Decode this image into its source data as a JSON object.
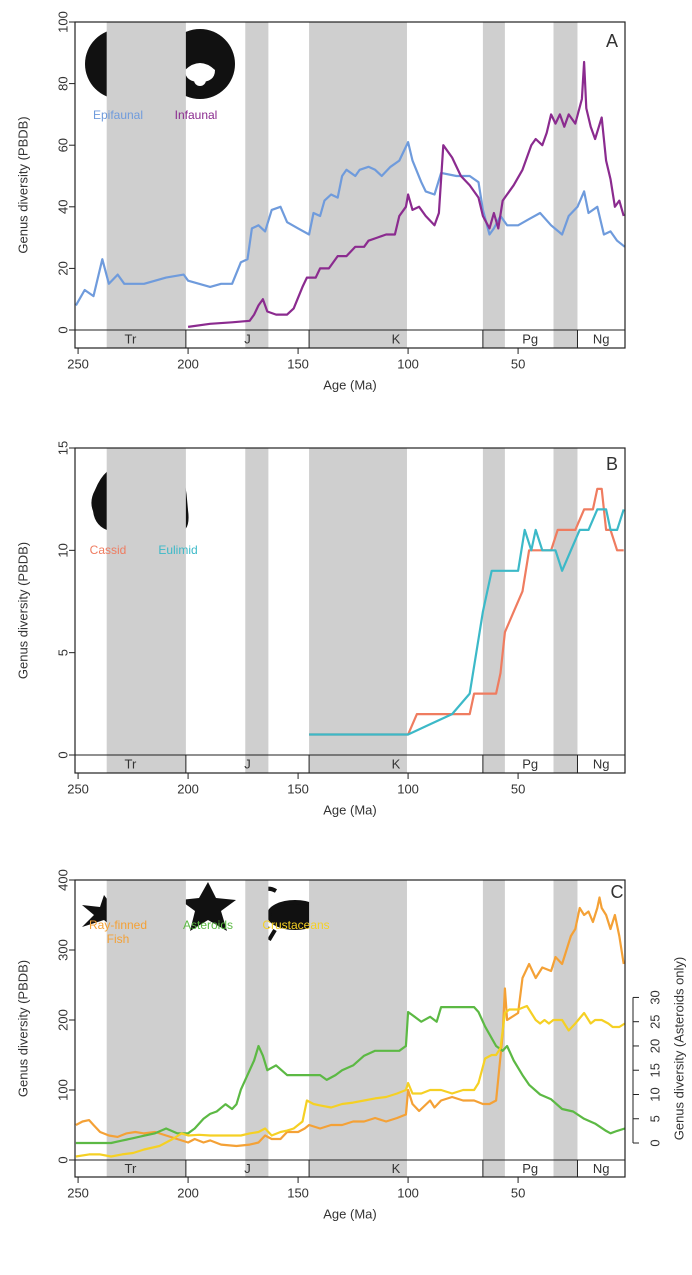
{
  "chart_data": [
    {
      "type": "line",
      "panel_label": "A",
      "ylabel": "Genus diversity (PBDB)",
      "xlabel": "Age (Ma)",
      "xlim": [
        251.4,
        1.4
      ],
      "xticks": [
        250,
        200,
        150,
        100,
        50
      ],
      "ylim": [
        0,
        100
      ],
      "yticks": [
        0,
        20,
        40,
        60,
        80,
        100
      ],
      "bands": [
        [
          237,
          201
        ],
        [
          174,
          163.5
        ],
        [
          145,
          100.5
        ],
        [
          66,
          56
        ],
        [
          33.9,
          23
        ]
      ],
      "periods": [
        {
          "label": "Tr",
          "start": 251.4,
          "end": 201
        },
        {
          "label": "J",
          "start": 201,
          "end": 145
        },
        {
          "label": "K",
          "start": 145,
          "end": 66
        },
        {
          "label": "Pg",
          "start": 66,
          "end": 23
        },
        {
          "label": "Ng",
          "start": 23,
          "end": 1.4
        }
      ],
      "series": [
        {
          "name": "Epifaunal",
          "color": "#6f9bdc",
          "x": [
            251,
            247,
            243,
            239,
            236,
            232,
            229,
            220,
            210,
            202,
            200,
            195,
            190,
            185,
            180,
            176,
            173,
            171,
            168,
            165,
            162,
            158,
            155,
            150,
            145,
            143,
            140,
            138,
            135,
            132,
            130,
            128,
            124,
            122,
            118,
            115,
            112,
            108,
            104,
            100,
            98,
            94,
            92,
            88,
            85,
            78,
            72,
            68,
            66,
            63,
            61,
            58,
            55,
            50,
            45,
            40,
            35,
            30,
            27,
            23,
            20,
            18,
            14,
            11,
            8,
            5,
            1.5
          ],
          "values": [
            8,
            13,
            11,
            23,
            15,
            18,
            15,
            15,
            17,
            18,
            16,
            15,
            14,
            15,
            15,
            22,
            23,
            33,
            34,
            32,
            39,
            40,
            35,
            33,
            31,
            38,
            37,
            42,
            44,
            43,
            50,
            52,
            50,
            52,
            53,
            52,
            50,
            53,
            55,
            61,
            55,
            48,
            45,
            44,
            51,
            50,
            50,
            48,
            39,
            31,
            33,
            37,
            34,
            34,
            36,
            38,
            34,
            31,
            37,
            40,
            45,
            38,
            40,
            31,
            32,
            29,
            27
          ]
        },
        {
          "name": "Infaunal",
          "color": "#8b2b8f",
          "x": [
            200,
            190,
            180,
            172,
            170,
            168,
            166,
            164,
            160,
            155,
            152,
            148,
            146,
            142,
            140,
            136,
            132,
            128,
            124,
            120,
            118,
            114,
            110,
            106,
            104,
            101,
            100,
            98,
            95,
            92,
            88,
            86,
            84,
            80,
            76,
            72,
            68,
            66,
            63,
            61,
            59,
            57,
            52,
            48,
            44,
            42,
            39,
            37,
            35,
            33,
            31,
            29,
            27,
            24,
            21,
            20,
            19,
            17,
            15,
            12,
            10,
            8,
            6,
            4,
            2
          ],
          "values": [
            1,
            2,
            2.5,
            3,
            5,
            8,
            10,
            6,
            5,
            5,
            7,
            14,
            17,
            17,
            20,
            20,
            24,
            24,
            27,
            27,
            29,
            30,
            31,
            31,
            37,
            40,
            44,
            39,
            40,
            37,
            34,
            38,
            60,
            56,
            50,
            47,
            43,
            37,
            33,
            38,
            33,
            42,
            47,
            52,
            60,
            62,
            60,
            64,
            70,
            67,
            70,
            66,
            70,
            67,
            75,
            87,
            72,
            66,
            62,
            69,
            55,
            49,
            40,
            42,
            37
          ]
        }
      ]
    },
    {
      "type": "line",
      "panel_label": "B",
      "ylabel": "Genus diversity (PBDB)",
      "xlabel": "Age (Ma)",
      "xlim": [
        251.4,
        1.4
      ],
      "xticks": [
        250,
        200,
        150,
        100,
        50
      ],
      "ylim": [
        0,
        15
      ],
      "yticks": [
        0,
        5,
        10,
        15
      ],
      "bands": [
        [
          237,
          201
        ],
        [
          174,
          163.5
        ],
        [
          145,
          100.5
        ],
        [
          66,
          56
        ],
        [
          33.9,
          23
        ]
      ],
      "periods": [
        {
          "label": "Tr",
          "start": 251.4,
          "end": 201
        },
        {
          "label": "J",
          "start": 201,
          "end": 145
        },
        {
          "label": "K",
          "start": 145,
          "end": 66
        },
        {
          "label": "Pg",
          "start": 66,
          "end": 23
        },
        {
          "label": "Ng",
          "start": 23,
          "end": 1.4
        }
      ],
      "series": [
        {
          "name": "Cassid",
          "color": "#ef7c60",
          "x": [
            145,
            100,
            96,
            90,
            80,
            72,
            70,
            66,
            60,
            58,
            56,
            52,
            48,
            45,
            42,
            38,
            35,
            32,
            28,
            24,
            20,
            16,
            14,
            12,
            10,
            8,
            5,
            2
          ],
          "values": [
            1,
            1,
            2,
            2,
            2,
            2,
            3,
            3,
            3,
            4,
            6,
            7,
            8,
            10,
            10,
            10,
            10,
            11,
            11,
            11,
            12,
            12,
            13,
            13,
            11,
            11,
            10,
            10
          ]
        },
        {
          "name": "Eulimid",
          "color": "#3cb9c8",
          "x": [
            145,
            100,
            90,
            80,
            72,
            69,
            66,
            62,
            58,
            54,
            50,
            47,
            44,
            42,
            39,
            36,
            33,
            30,
            26,
            22,
            18,
            14,
            10,
            8,
            5,
            2
          ],
          "values": [
            1,
            1,
            1.5,
            2,
            3,
            5,
            7,
            9,
            9,
            9,
            9,
            11,
            10,
            11,
            10,
            10,
            10,
            9,
            10,
            11,
            11,
            12,
            12,
            11,
            11,
            12
          ]
        }
      ]
    },
    {
      "type": "line",
      "panel_label": "C",
      "ylabel": "Genus diversity (PBDB)",
      "y2label": "Genus diversity (Asteroids only)",
      "xlabel": "Age (Ma)",
      "xlim": [
        251.4,
        1.4
      ],
      "xticks": [
        250,
        200,
        150,
        100,
        50
      ],
      "ylim": [
        0,
        400
      ],
      "yticks": [
        0,
        100,
        200,
        300,
        400
      ],
      "y2lim": [
        -3.5,
        54.2
      ],
      "y2ticks": [
        0,
        5,
        10,
        15,
        20,
        25,
        30
      ],
      "bands": [
        [
          237,
          201
        ],
        [
          174,
          163.5
        ],
        [
          145,
          100.5
        ],
        [
          66,
          56
        ],
        [
          33.9,
          23
        ]
      ],
      "periods": [
        {
          "label": "Tr",
          "start": 251.4,
          "end": 201
        },
        {
          "label": "J",
          "start": 201,
          "end": 145
        },
        {
          "label": "K",
          "start": 145,
          "end": 66
        },
        {
          "label": "Pg",
          "start": 66,
          "end": 23
        },
        {
          "label": "Ng",
          "start": 23,
          "end": 1.4
        }
      ],
      "series": [
        {
          "name": "Ray-finned Fish",
          "color": "#f4a136",
          "x": [
            251,
            248,
            245,
            243,
            240,
            236,
            232,
            228,
            224,
            220,
            215,
            210,
            205,
            200,
            197,
            193,
            190,
            185,
            178,
            172,
            168,
            165,
            162,
            158,
            155,
            150,
            147,
            145,
            140,
            135,
            130,
            125,
            120,
            115,
            110,
            105,
            101,
            100,
            98,
            95,
            90,
            88,
            85,
            80,
            75,
            70,
            66,
            63,
            60,
            57,
            56,
            55,
            50,
            48,
            45,
            42,
            39,
            35,
            33,
            30,
            28,
            26,
            24,
            22,
            20,
            18,
            16,
            14,
            13,
            12,
            10,
            8,
            6,
            4,
            2
          ],
          "values": [
            50,
            55,
            57,
            50,
            40,
            35,
            33,
            38,
            40,
            38,
            40,
            35,
            30,
            25,
            30,
            25,
            28,
            22,
            20,
            22,
            25,
            35,
            30,
            30,
            40,
            40,
            45,
            50,
            45,
            50,
            50,
            55,
            55,
            60,
            55,
            60,
            65,
            100,
            80,
            70,
            85,
            75,
            85,
            90,
            85,
            85,
            80,
            80,
            85,
            180,
            245,
            200,
            210,
            260,
            280,
            260,
            275,
            270,
            290,
            280,
            300,
            320,
            330,
            360,
            350,
            355,
            340,
            360,
            375,
            360,
            350,
            330,
            350,
            320,
            280
          ]
        },
        {
          "name": "Asteroids",
          "color": "#5cb944",
          "axis": "y2",
          "x": [
            251,
            245,
            240,
            235,
            230,
            225,
            220,
            215,
            210,
            205,
            200,
            197,
            193,
            190,
            187,
            183,
            180,
            178,
            176,
            172,
            170,
            168,
            166,
            164,
            160,
            155,
            150,
            145,
            140,
            137,
            133,
            130,
            125,
            120,
            115,
            110,
            104,
            101,
            100,
            97,
            94,
            90,
            87,
            85,
            80,
            75,
            70,
            68,
            65,
            60,
            57,
            55,
            52,
            48,
            45,
            40,
            35,
            30,
            25,
            20,
            15,
            10,
            8,
            5,
            1.5
          ],
          "values": [
            0,
            0,
            0,
            0,
            0.5,
            1,
            1.5,
            2,
            3,
            2,
            2,
            3,
            5,
            6,
            6.5,
            8,
            7,
            8,
            11,
            15,
            17,
            20,
            18,
            15,
            16,
            14,
            14,
            14,
            14,
            13,
            14,
            15,
            16,
            18,
            19,
            19,
            19,
            20,
            27,
            26,
            25,
            26,
            25,
            28,
            28,
            28,
            28,
            27,
            24,
            20,
            19,
            20,
            17,
            14,
            12,
            10,
            9,
            7,
            6.5,
            5,
            4,
            2.5,
            2,
            2.5,
            3
          ]
        },
        {
          "name": "Crustaceans",
          "color": "#f5d024",
          "x": [
            251,
            245,
            240,
            235,
            230,
            225,
            220,
            213,
            207,
            203,
            200,
            195,
            190,
            185,
            180,
            176,
            172,
            168,
            165,
            162,
            158,
            155,
            152,
            148,
            146,
            143,
            140,
            135,
            130,
            125,
            120,
            115,
            110,
            105,
            101,
            100,
            98,
            94,
            90,
            85,
            80,
            75,
            70,
            68,
            65,
            62,
            60,
            58,
            56,
            54,
            50,
            46,
            44,
            42,
            40,
            38,
            36,
            34,
            30,
            27,
            24,
            20,
            17,
            15,
            12,
            9,
            7,
            4,
            1.5
          ],
          "values": [
            5,
            8,
            8,
            5,
            8,
            10,
            15,
            20,
            30,
            38,
            35,
            36,
            35,
            35,
            35,
            35,
            38,
            40,
            45,
            35,
            40,
            42,
            45,
            55,
            85,
            80,
            78,
            75,
            80,
            82,
            85,
            88,
            90,
            95,
            100,
            110,
            95,
            95,
            100,
            100,
            95,
            100,
            100,
            110,
            145,
            150,
            150,
            160,
            210,
            215,
            215,
            220,
            210,
            200,
            195,
            200,
            195,
            200,
            200,
            185,
            195,
            210,
            195,
            200,
            200,
            195,
            190,
            190,
            195
          ]
        }
      ]
    }
  ]
}
